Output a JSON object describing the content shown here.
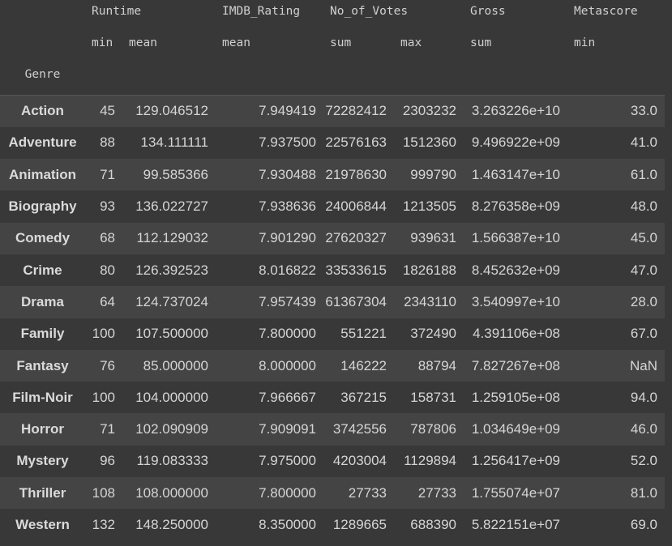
{
  "header": {
    "groups": [
      "Runtime",
      "IMDB_Rating",
      "No_of_Votes",
      "Gross",
      "Metascore"
    ],
    "aggregations": [
      "min",
      "mean",
      "mean",
      "sum",
      "max",
      "sum",
      "min"
    ],
    "index_name": "Genre"
  },
  "rows": [
    {
      "genre": "Action",
      "runtime_min": "45",
      "runtime_mean": "129.046512",
      "imdb_mean": "7.949419",
      "votes_sum": "72282412",
      "votes_max": "2303232",
      "gross_sum": "3.263226e+10",
      "metascore_min": "33.0"
    },
    {
      "genre": "Adventure",
      "runtime_min": "88",
      "runtime_mean": "134.111111",
      "imdb_mean": "7.937500",
      "votes_sum": "22576163",
      "votes_max": "1512360",
      "gross_sum": "9.496922e+09",
      "metascore_min": "41.0"
    },
    {
      "genre": "Animation",
      "runtime_min": "71",
      "runtime_mean": "99.585366",
      "imdb_mean": "7.930488",
      "votes_sum": "21978630",
      "votes_max": "999790",
      "gross_sum": "1.463147e+10",
      "metascore_min": "61.0"
    },
    {
      "genre": "Biography",
      "runtime_min": "93",
      "runtime_mean": "136.022727",
      "imdb_mean": "7.938636",
      "votes_sum": "24006844",
      "votes_max": "1213505",
      "gross_sum": "8.276358e+09",
      "metascore_min": "48.0"
    },
    {
      "genre": "Comedy",
      "runtime_min": "68",
      "runtime_mean": "112.129032",
      "imdb_mean": "7.901290",
      "votes_sum": "27620327",
      "votes_max": "939631",
      "gross_sum": "1.566387e+10",
      "metascore_min": "45.0"
    },
    {
      "genre": "Crime",
      "runtime_min": "80",
      "runtime_mean": "126.392523",
      "imdb_mean": "8.016822",
      "votes_sum": "33533615",
      "votes_max": "1826188",
      "gross_sum": "8.452632e+09",
      "metascore_min": "47.0"
    },
    {
      "genre": "Drama",
      "runtime_min": "64",
      "runtime_mean": "124.737024",
      "imdb_mean": "7.957439",
      "votes_sum": "61367304",
      "votes_max": "2343110",
      "gross_sum": "3.540997e+10",
      "metascore_min": "28.0"
    },
    {
      "genre": "Family",
      "runtime_min": "100",
      "runtime_mean": "107.500000",
      "imdb_mean": "7.800000",
      "votes_sum": "551221",
      "votes_max": "372490",
      "gross_sum": "4.391106e+08",
      "metascore_min": "67.0"
    },
    {
      "genre": "Fantasy",
      "runtime_min": "76",
      "runtime_mean": "85.000000",
      "imdb_mean": "8.000000",
      "votes_sum": "146222",
      "votes_max": "88794",
      "gross_sum": "7.827267e+08",
      "metascore_min": "NaN"
    },
    {
      "genre": "Film-Noir",
      "runtime_min": "100",
      "runtime_mean": "104.000000",
      "imdb_mean": "7.966667",
      "votes_sum": "367215",
      "votes_max": "158731",
      "gross_sum": "1.259105e+08",
      "metascore_min": "94.0"
    },
    {
      "genre": "Horror",
      "runtime_min": "71",
      "runtime_mean": "102.090909",
      "imdb_mean": "7.909091",
      "votes_sum": "3742556",
      "votes_max": "787806",
      "gross_sum": "1.034649e+09",
      "metascore_min": "46.0"
    },
    {
      "genre": "Mystery",
      "runtime_min": "96",
      "runtime_mean": "119.083333",
      "imdb_mean": "7.975000",
      "votes_sum": "4203004",
      "votes_max": "1129894",
      "gross_sum": "1.256417e+09",
      "metascore_min": "52.0"
    },
    {
      "genre": "Thriller",
      "runtime_min": "108",
      "runtime_mean": "108.000000",
      "imdb_mean": "7.800000",
      "votes_sum": "27733",
      "votes_max": "27733",
      "gross_sum": "1.755074e+07",
      "metascore_min": "81.0"
    },
    {
      "genre": "Western",
      "runtime_min": "132",
      "runtime_mean": "148.250000",
      "imdb_mean": "8.350000",
      "votes_sum": "1289665",
      "votes_max": "688390",
      "gross_sum": "5.822151e+07",
      "metascore_min": "69.0"
    }
  ],
  "colors": {
    "background": "#383838",
    "row_alt": "#444444",
    "text": "#d5d5d5"
  }
}
